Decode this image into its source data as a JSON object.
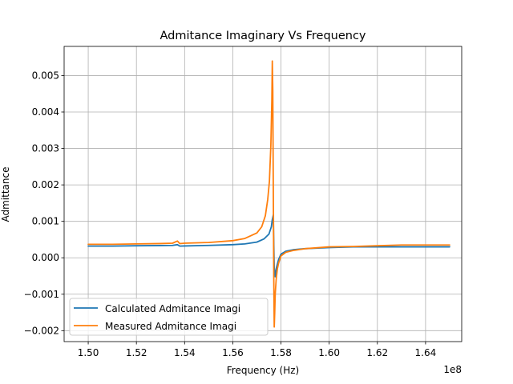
{
  "chart_data": {
    "type": "line",
    "title": "Admitance Imaginary Vs Frequency",
    "xlabel": "Frequency (Hz)",
    "ylabel": "Admittance",
    "x_offset_label": "1e8",
    "xlim": [
      149000000,
      165500000
    ],
    "ylim": [
      -0.0023,
      0.0058
    ],
    "x_ticks": [
      150000000,
      152000000,
      154000000,
      156000000,
      158000000,
      160000000,
      162000000,
      164000000
    ],
    "x_tick_labels": [
      "1.50",
      "1.52",
      "1.54",
      "1.56",
      "1.58",
      "1.60",
      "1.62",
      "1.64"
    ],
    "y_ticks": [
      -0.002,
      -0.001,
      0.0,
      0.001,
      0.002,
      0.003,
      0.004,
      0.005
    ],
    "y_tick_labels": [
      "−0.002",
      "−0.001",
      "0.000",
      "0.001",
      "0.002",
      "0.003",
      "0.004",
      "0.005"
    ],
    "grid": true,
    "legend_position": "lower-left",
    "series": [
      {
        "name": "Calculated Admitance Imagi",
        "color": "#1f77b4",
        "x": [
          150000000,
          151000000,
          152000000,
          153000000,
          153500000,
          153700000,
          153800000,
          154000000,
          155000000,
          156000000,
          156500000,
          157000000,
          157300000,
          157500000,
          157600000,
          157640000,
          157680000,
          157720000,
          157760000,
          157800000,
          157900000,
          158000000,
          158200000,
          158500000,
          159000000,
          160000000,
          161000000,
          162000000,
          163000000,
          164000000,
          165000000
        ],
        "y": [
          0.00032,
          0.00032,
          0.00033,
          0.000335,
          0.00034,
          0.00036,
          0.00032,
          0.000325,
          0.00034,
          0.00036,
          0.00038,
          0.00043,
          0.00052,
          0.00065,
          0.00085,
          0.00105,
          0.00117,
          -0.0003,
          -0.00052,
          -0.0003,
          -5e-05,
          0.0001,
          0.00018,
          0.00022,
          0.00025,
          0.00028,
          0.0003,
          0.0003,
          0.0003,
          0.0003,
          0.0003
        ]
      },
      {
        "name": "Measured Admitance Imagi",
        "color": "#ff7f0e",
        "x": [
          150000000,
          151000000,
          152000000,
          153000000,
          153500000,
          153700000,
          153800000,
          154000000,
          155000000,
          156000000,
          156500000,
          157000000,
          157200000,
          157350000,
          157450000,
          157520000,
          157580000,
          157620000,
          157640000,
          157660000,
          157680000,
          157700000,
          157720000,
          157740000,
          157760000,
          157800000,
          157850000,
          157900000,
          158000000,
          158200000,
          158500000,
          159000000,
          160000000,
          161000000,
          162000000,
          163000000,
          164000000,
          165000000
        ],
        "y": [
          0.00037,
          0.00037,
          0.00038,
          0.00039,
          0.0004,
          0.00046,
          0.00039,
          0.0004,
          0.00042,
          0.00047,
          0.00053,
          0.00068,
          0.00085,
          0.00115,
          0.0016,
          0.0021,
          0.0031,
          0.0043,
          0.0054,
          0.0046,
          0.002,
          -0.0005,
          -0.0019,
          -0.0015,
          -0.001,
          -0.0006,
          -0.0003,
          -0.00015,
          5e-05,
          0.00015,
          0.0002,
          0.00025,
          0.0003,
          0.00031,
          0.00033,
          0.00035,
          0.00035,
          0.00035
        ]
      }
    ]
  }
}
